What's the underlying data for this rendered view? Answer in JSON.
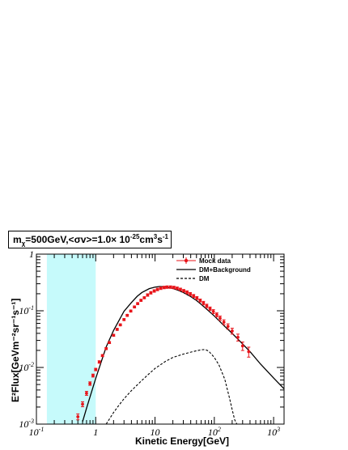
{
  "chart_data": {
    "type": "line",
    "title": {
      "mass_sym": "m",
      "mass_sub": "χ",
      "mass_rest": "=500GeV,<σv>=1.0× 10",
      "exp1": "-25",
      "unit": "cm",
      "exp2": "3",
      "unit2": "s",
      "exp3": "-1"
    },
    "xlabel": "Kinetic Energy[GeV]",
    "ylabel": "E²Flux[GeVm⁻²sr⁻¹s⁻¹]",
    "x_scale": "log",
    "y_scale": "log",
    "xlim": [
      0.1,
      1500
    ],
    "ylim": [
      0.001,
      1
    ],
    "x_tick_labels": [
      {
        "value": 0.1,
        "base": "10",
        "exp": "-1"
      },
      {
        "value": 1,
        "base": "1",
        "exp": ""
      },
      {
        "value": 10,
        "base": "10",
        "exp": ""
      },
      {
        "value": 100,
        "base": "10",
        "exp": "2"
      },
      {
        "value": 1000,
        "base": "10",
        "exp": "3"
      }
    ],
    "y_tick_labels": [
      {
        "value": 0.001,
        "base": "10",
        "exp": "-3"
      },
      {
        "value": 0.01,
        "base": "10",
        "exp": "-2"
      },
      {
        "value": 0.1,
        "base": "10",
        "exp": "-1"
      },
      {
        "value": 1,
        "base": "1",
        "exp": ""
      }
    ],
    "shaded_region": {
      "x": [
        0.15,
        1.0
      ],
      "color": "#c6fafb"
    },
    "legend": {
      "placement": "top-right",
      "entries": [
        {
          "label": "Mock data",
          "style": "marker",
          "color": "#e8141a"
        },
        {
          "label": "DM+Background",
          "style": "solid",
          "color": "#000000"
        },
        {
          "label": "DM",
          "style": "dashed",
          "color": "#000000"
        }
      ]
    },
    "series": [
      {
        "name": "DM+Background",
        "style": "solid",
        "color": "#000000",
        "x": [
          0.6,
          0.7,
          0.8,
          1.0,
          1.5,
          2,
          3,
          4,
          5,
          6,
          8,
          10,
          12,
          15,
          20,
          25,
          30,
          40,
          50,
          60,
          80,
          100,
          150,
          200,
          300,
          400,
          600,
          1000,
          1500
        ],
        "y": [
          0.0011,
          0.0019,
          0.003,
          0.0064,
          0.023,
          0.045,
          0.098,
          0.14,
          0.18,
          0.21,
          0.246,
          0.262,
          0.268,
          0.265,
          0.248,
          0.228,
          0.21,
          0.178,
          0.152,
          0.13,
          0.1,
          0.081,
          0.053,
          0.04,
          0.026,
          0.019,
          0.0115,
          0.0065,
          0.0042
        ]
      },
      {
        "name": "DM",
        "style": "dashed",
        "color": "#000000",
        "x": [
          1.5,
          2,
          2.5,
          3,
          4,
          5,
          6,
          8,
          10,
          15,
          20,
          30,
          40,
          50,
          60,
          70,
          80,
          100,
          120,
          150,
          180,
          200,
          220,
          240
        ],
        "y": [
          0.001,
          0.0016,
          0.0022,
          0.0028,
          0.0039,
          0.0049,
          0.0059,
          0.0078,
          0.0096,
          0.0128,
          0.015,
          0.0172,
          0.0186,
          0.0197,
          0.0205,
          0.0207,
          0.0195,
          0.015,
          0.011,
          0.0062,
          0.0029,
          0.0018,
          0.0012,
          0.001
        ]
      }
    ],
    "mock_data": {
      "name": "Mock data",
      "color": "#e8141a",
      "x": [
        0.5,
        0.6,
        0.7,
        0.8,
        0.9,
        1.0,
        1.15,
        1.3,
        1.5,
        1.7,
        2.0,
        2.3,
        2.6,
        3.0,
        3.4,
        3.9,
        4.5,
        5.1,
        5.8,
        6.6,
        7.5,
        8.5,
        9.7,
        11,
        12.5,
        14.2,
        16,
        18.3,
        20.8,
        23.6,
        26.8,
        30.5,
        34.6,
        39.3,
        44.7,
        50.8,
        57.7,
        65.6,
        74.5,
        84.7,
        96.3,
        110,
        125,
        145,
        170,
        200,
        250,
        300,
        380
      ],
      "y": [
        0.00135,
        0.00225,
        0.0035,
        0.0052,
        0.0072,
        0.0092,
        0.0125,
        0.0162,
        0.0215,
        0.0275,
        0.037,
        0.047,
        0.0565,
        0.07,
        0.083,
        0.099,
        0.117,
        0.134,
        0.153,
        0.17,
        0.19,
        0.208,
        0.224,
        0.238,
        0.25,
        0.258,
        0.262,
        0.262,
        0.258,
        0.25,
        0.239,
        0.226,
        0.212,
        0.198,
        0.183,
        0.168,
        0.152,
        0.137,
        0.122,
        0.109,
        0.097,
        0.085,
        0.074,
        0.063,
        0.053,
        0.044,
        0.034,
        0.024,
        0.019
      ],
      "err_frac": [
        0.12,
        0.1,
        0.08,
        0.07,
        0.06,
        0.05,
        0.05,
        0.04,
        0.04,
        0.04,
        0.04,
        0.04,
        0.04,
        0.04,
        0.04,
        0.04,
        0.04,
        0.04,
        0.04,
        0.04,
        0.05,
        0.05,
        0.05,
        0.05,
        0.05,
        0.05,
        0.05,
        0.05,
        0.05,
        0.05,
        0.05,
        0.05,
        0.06,
        0.06,
        0.06,
        0.06,
        0.06,
        0.07,
        0.07,
        0.07,
        0.08,
        0.08,
        0.09,
        0.1,
        0.11,
        0.12,
        0.14,
        0.17,
        0.2
      ]
    }
  }
}
